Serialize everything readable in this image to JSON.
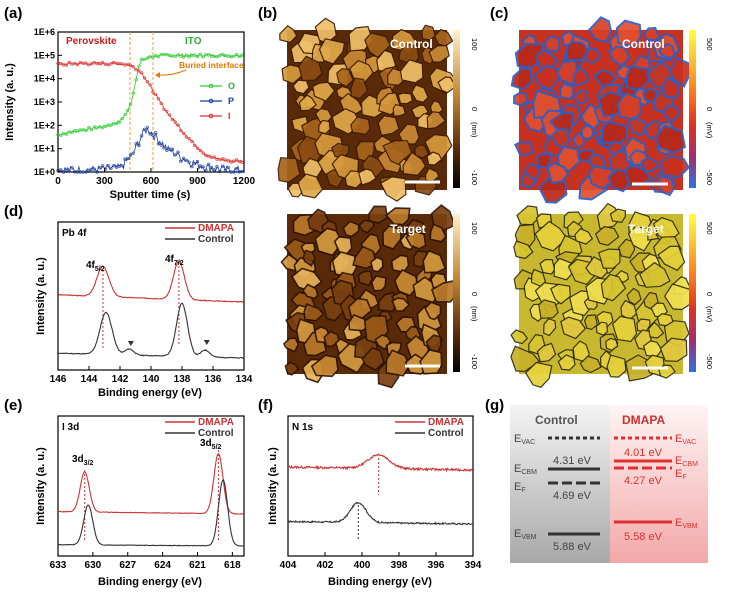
{
  "panels": {
    "a": {
      "label": "(a)",
      "region_perovskite": "Perovskite",
      "region_ito": "ITO",
      "annotation": "Buried interface",
      "xlabel": "Sputter time (s)",
      "ylabel": "Intensity (a. u.)",
      "xticks": [
        "0",
        "300",
        "600",
        "900",
        "1200"
      ],
      "yticks": [
        "1E+0",
        "1E+1",
        "1E+2",
        "1E+3",
        "1E+4",
        "1E+5",
        "1E+6"
      ],
      "legend": [
        "O",
        "P",
        "I"
      ]
    },
    "b": {
      "label": "(b)",
      "top_title": "Control",
      "bottom_title": "Target",
      "scale_top": "100",
      "scale_mid": "0",
      "scale_bottom": "-100",
      "unit": "(nm)"
    },
    "c": {
      "label": "(c)",
      "top_title": "Control",
      "bottom_title": "Target",
      "scale_top": "500",
      "scale_mid": "0",
      "scale_bottom": "-500",
      "unit": "(mV)"
    },
    "d": {
      "label": "(d)",
      "element": "Pb 4f",
      "legend": [
        "DMAPA",
        "Control"
      ],
      "peak1": "4f",
      "peak1_sub": "5/2",
      "peak2": "4f",
      "peak2_sub": "7/2",
      "xlabel": "Binding energy (eV)",
      "ylabel": "Intensity (a. u.)",
      "xticks": [
        "146",
        "144",
        "142",
        "140",
        "138",
        "136",
        "134"
      ]
    },
    "e": {
      "label": "(e)",
      "element": "I 3d",
      "legend": [
        "DMAPA",
        "Control"
      ],
      "peak1": "3d",
      "peak1_sub": "3/2",
      "peak2": "3d",
      "peak2_sub": "5/2",
      "xlabel": "Binding energy (eV)",
      "ylabel": "Intensity (a. u.)",
      "xticks": [
        "633",
        "630",
        "627",
        "624",
        "621",
        "618"
      ]
    },
    "f": {
      "label": "(f)",
      "element": "N 1s",
      "legend": [
        "DMAPA",
        "Control"
      ],
      "xlabel": "Binding energy (eV)",
      "ylabel": "Intensity (a. u.)",
      "xticks": [
        "404",
        "402",
        "400",
        "398",
        "396",
        "394"
      ]
    },
    "g": {
      "label": "(g)",
      "col_control": "Control",
      "col_dmapa": "DMAPA",
      "evac": "E",
      "evac_sub": "VAC",
      "ecbm": "E",
      "ecbm_sub": "CBM",
      "ef": "E",
      "ef_sub": "F",
      "evbm": "E",
      "evbm_sub": "VBM",
      "c_cbm": "4.31 eV",
      "c_f": "4.69 eV",
      "c_vbm": "5.88 eV",
      "d_cbm": "4.01 eV",
      "d_f": "4.27 eV",
      "d_vbm": "5.58 eV"
    }
  },
  "chart_data": [
    {
      "type": "line",
      "panel": "a",
      "xlabel": "Sputter time (s)",
      "ylabel": "Intensity (a. u.)",
      "xlim": [
        0,
        1200
      ],
      "ylim": [
        1,
        1000000
      ],
      "yscale": "log",
      "series": [
        {
          "name": "O",
          "color": "#33cc33",
          "x": [
            0,
            100,
            200,
            300,
            400,
            450,
            480,
            500,
            520,
            540,
            560,
            580,
            600,
            700,
            800,
            900,
            1000,
            1100,
            1200
          ],
          "y": [
            40,
            55,
            70,
            90,
            150,
            400,
            1500,
            8000,
            30000,
            60000,
            70000,
            80000,
            90000,
            100000,
            100000,
            100000,
            100000,
            100000,
            100000
          ]
        },
        {
          "name": "P",
          "color": "#1f3f9f",
          "x": [
            0,
            100,
            200,
            300,
            400,
            480,
            520,
            560,
            580,
            600,
            650,
            700,
            800,
            900,
            1000,
            1100,
            1200
          ],
          "y": [
            1.2,
            1.2,
            1.2,
            1.3,
            1.5,
            5,
            20,
            60,
            70,
            50,
            25,
            10,
            4,
            2,
            1.4,
            1.2,
            1.2
          ]
        },
        {
          "name": "I",
          "color": "#dd3333",
          "x": [
            0,
            100,
            200,
            300,
            400,
            450,
            500,
            550,
            600,
            650,
            700,
            750,
            800,
            850,
            900,
            950,
            1000,
            1100,
            1200
          ],
          "y": [
            40000,
            45000,
            45000,
            45000,
            45000,
            40000,
            30000,
            15000,
            4000,
            1200,
            400,
            150,
            60,
            25,
            12,
            6,
            4,
            3,
            3
          ]
        }
      ]
    },
    {
      "type": "line",
      "panel": "d",
      "xlabel": "Binding energy (eV)",
      "ylabel": "Intensity (a. u.)",
      "xlim": [
        146,
        134
      ],
      "series": [
        {
          "name": "DMAPA",
          "color": "#cc3333",
          "peaks": [
            143.1,
            138.2
          ]
        },
        {
          "name": "Control",
          "color": "#333333",
          "peaks": [
            142.9,
            138.0
          ],
          "minor_peaks": [
            141.4,
            136.5
          ]
        }
      ]
    },
    {
      "type": "line",
      "panel": "e",
      "xlabel": "Binding energy (eV)",
      "ylabel": "Intensity (a. u.)",
      "xlim": [
        633,
        617
      ],
      "series": [
        {
          "name": "DMAPA",
          "color": "#cc3333",
          "peaks": [
            630.7,
            619.2
          ]
        },
        {
          "name": "Control",
          "color": "#333333",
          "peaks": [
            630.4,
            618.8
          ]
        }
      ]
    },
    {
      "type": "line",
      "panel": "f",
      "xlabel": "Binding energy (eV)",
      "ylabel": "Intensity (a. u.)",
      "xlim": [
        404,
        394
      ],
      "series": [
        {
          "name": "DMAPA",
          "color": "#cc3333",
          "peaks": [
            399.1
          ]
        },
        {
          "name": "Control",
          "color": "#333333",
          "peaks": [
            400.2
          ]
        }
      ]
    }
  ],
  "colors": {
    "red": "#d03030",
    "green": "#33cc33",
    "blue": "#1f3f9f",
    "black": "#222222",
    "orange": "#f08c00",
    "afm_dark": "#3a1d05",
    "afm_light": "#f0c070",
    "kpfm_red": "#c83020",
    "kpfm_yellow": "#e6d23a"
  }
}
